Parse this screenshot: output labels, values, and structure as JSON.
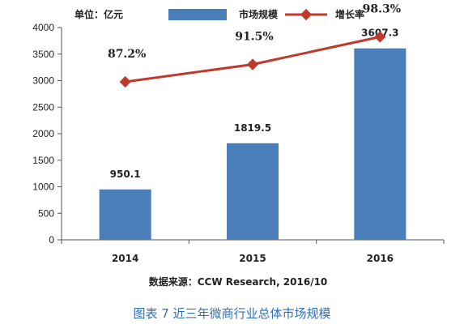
{
  "chart_data": {
    "type": "bar",
    "unit": "单位：亿元",
    "categories": [
      "2014",
      "2015",
      "2016"
    ],
    "series": [
      {
        "name": "市场规模",
        "type": "bar",
        "values": [
          950.1,
          1819.5,
          3607.3
        ],
        "labels": [
          "950.1",
          "1819.5",
          "3607.3"
        ],
        "color": "#4a7ebb"
      },
      {
        "name": "增长率",
        "type": "line",
        "values": [
          87.2,
          91.5,
          98.3
        ],
        "labels": [
          "87.2%",
          "91.5%",
          "98.3%"
        ],
        "color": "#c0392b"
      }
    ],
    "ylim": [
      0,
      4000
    ],
    "yticks": [
      "0",
      "500",
      "1000",
      "1500",
      "2000",
      "2500",
      "3000",
      "3500",
      "4000"
    ],
    "legend_position": "top",
    "source": "数据来源：CCW Research, 2016/10",
    "grid": false
  },
  "caption": "图表 7  近三年微商行业总体市场规模"
}
